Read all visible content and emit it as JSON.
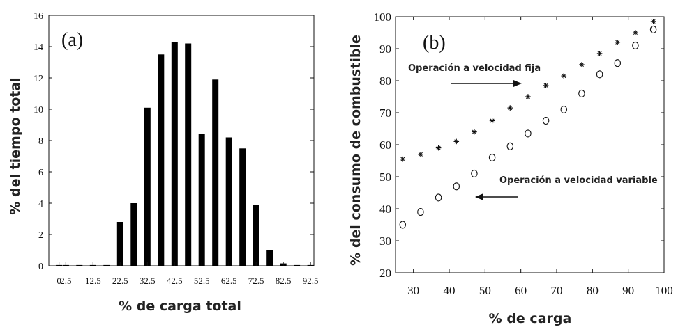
{
  "chart_data": [
    {
      "type": "bar",
      "panel_label": "(a)",
      "xlabel": "% de carga total",
      "ylabel": "% del tiempo total",
      "ylim": [
        0,
        16
      ],
      "yticks": [
        "0",
        "2",
        "4",
        "6",
        "8",
        "10",
        "12",
        "14",
        "16"
      ],
      "xtick_labels": [
        "0",
        "2.5",
        "12.5",
        "22.5",
        "32.5",
        "42.5",
        "52.5",
        "62.5",
        "72.5",
        "82.5",
        "92.5"
      ],
      "categories": [
        0,
        2.5,
        7.5,
        12.5,
        17.5,
        22.5,
        27.5,
        32.5,
        37.5,
        42.5,
        47.5,
        52.5,
        57.5,
        62.5,
        67.5,
        72.5,
        77.5,
        82.5,
        87.5,
        92.5
      ],
      "values": [
        0.05,
        0.05,
        0.05,
        0.05,
        0.05,
        2.8,
        4.0,
        10.1,
        13.5,
        14.3,
        14.2,
        8.4,
        11.9,
        8.2,
        7.5,
        3.9,
        1.0,
        0.15,
        0.05,
        0.05
      ]
    },
    {
      "type": "scatter",
      "panel_label": "(b)",
      "xlabel": "% de carga",
      "ylabel": "% del consumo de combustible",
      "xlim": [
        25,
        100
      ],
      "ylim": [
        20,
        100
      ],
      "xticks": [
        "30",
        "40",
        "50",
        "60",
        "70",
        "80",
        "90",
        "100"
      ],
      "yticks": [
        "20",
        "30",
        "40",
        "50",
        "60",
        "70",
        "80",
        "90",
        "100"
      ],
      "series": [
        {
          "name": "Operación a velocidad fija",
          "marker": "star",
          "x": [
            27,
            32,
            37,
            42,
            47,
            52,
            57,
            62,
            67,
            72,
            77,
            82,
            87,
            92,
            97
          ],
          "y": [
            55.5,
            57,
            59,
            61,
            64,
            67.5,
            71.5,
            75,
            78.5,
            81.5,
            85,
            88.5,
            92,
            95,
            98.5
          ]
        },
        {
          "name": "Operación a velocidad variable",
          "marker": "circle",
          "x": [
            27,
            32,
            37,
            42,
            47,
            52,
            57,
            62,
            67,
            72,
            77,
            82,
            87,
            92,
            97
          ],
          "y": [
            35,
            39,
            43.5,
            47,
            51,
            56,
            59.5,
            63.5,
            67.5,
            71,
            76,
            82,
            85.5,
            91,
            96
          ]
        }
      ]
    }
  ]
}
